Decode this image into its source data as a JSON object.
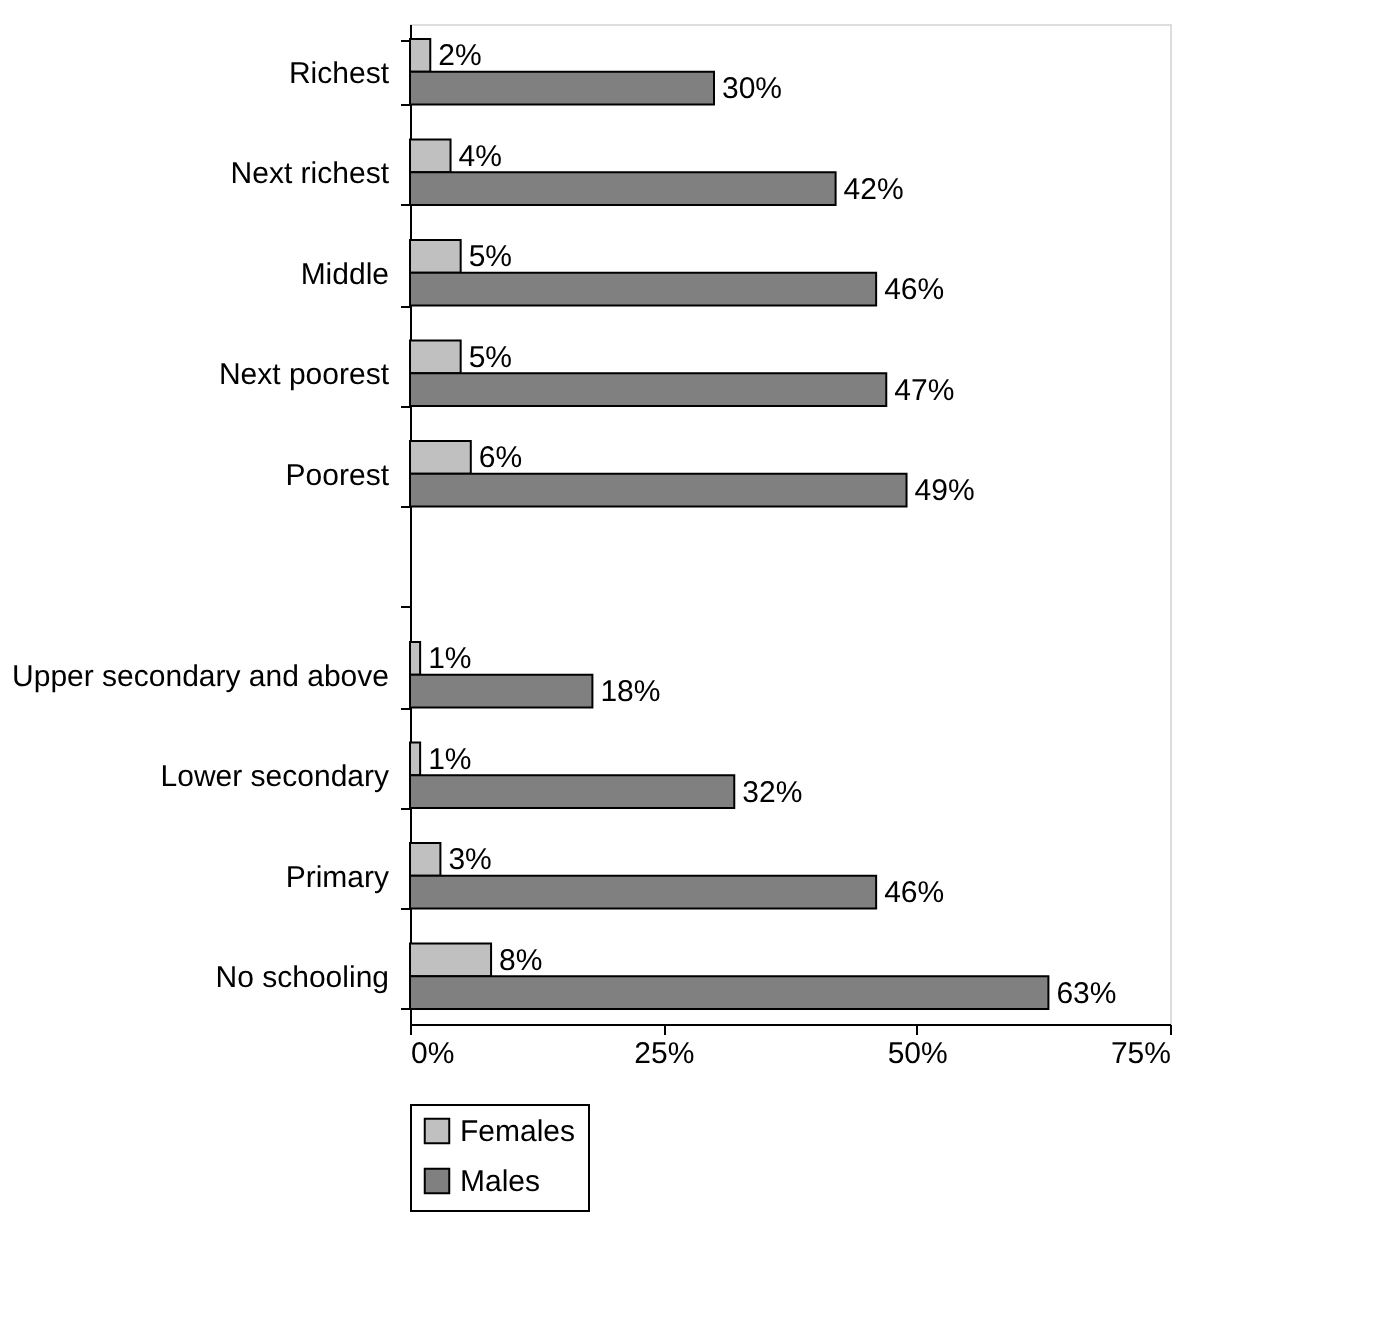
{
  "chart_data": {
    "type": "bar",
    "orientation": "horizontal",
    "categories": [
      "Richest",
      "Next richest",
      "Middle",
      "Next poorest",
      "Poorest",
      null,
      "Upper secondary and above",
      "Lower secondary",
      "Primary",
      "No schooling"
    ],
    "series": [
      {
        "name": "Females",
        "color": "#c0c0c0",
        "values": [
          2,
          4,
          5,
          5,
          6,
          null,
          1,
          1,
          3,
          8
        ],
        "value_labels": [
          "2%",
          "4%",
          "5%",
          "5%",
          "6%",
          null,
          "1%",
          "1%",
          "3%",
          "8%"
        ]
      },
      {
        "name": "Males",
        "color": "#808080",
        "values": [
          30,
          42,
          46,
          47,
          49,
          null,
          18,
          32,
          46,
          63
        ],
        "value_labels": [
          "30%",
          "42%",
          "46%",
          "47%",
          "49%",
          null,
          "18%",
          "32%",
          "46%",
          "63%"
        ]
      }
    ],
    "xlim": [
      0,
      75
    ],
    "xticks": [
      {
        "value": 0,
        "label": "0%"
      },
      {
        "value": 25,
        "label": "25%"
      },
      {
        "value": 50,
        "label": "50%"
      },
      {
        "value": 75,
        "label": "75%"
      }
    ],
    "grid": false,
    "legend": "bottom"
  }
}
